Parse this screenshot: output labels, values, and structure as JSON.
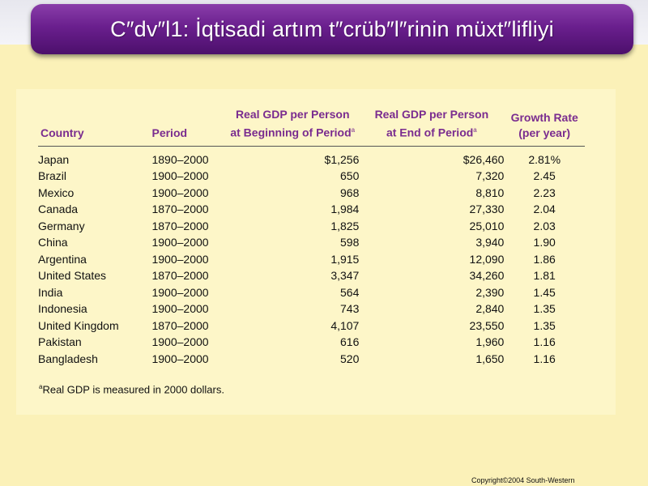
{
  "slide": {
    "title": "C″dv″l1: İqtisadi artım t″crüb″l″rinin müxt″lifliyi",
    "copyright": "Copyright©2004  South-Western"
  },
  "table": {
    "headers": {
      "country": "Country",
      "period": "Period",
      "begin_line1": "Real GDP per Person",
      "begin_line2": "at Beginning of Period",
      "end_line1": "Real GDP per Person",
      "end_line2": "at End of Period",
      "growth_line1": "Growth Rate",
      "growth_line2": "(per year)",
      "footnote_marker": "a"
    },
    "rows": [
      {
        "country": "Japan",
        "period": "1890–2000",
        "begin": "$1,256",
        "end": "$26,460",
        "growth": "2.81%"
      },
      {
        "country": "Brazil",
        "period": "1900–2000",
        "begin": "650",
        "end": "7,320",
        "growth": "2.45"
      },
      {
        "country": "Mexico",
        "period": "1900–2000",
        "begin": "968",
        "end": "8,810",
        "growth": "2.23"
      },
      {
        "country": "Canada",
        "period": "1870–2000",
        "begin": "1,984",
        "end": "27,330",
        "growth": "2.04"
      },
      {
        "country": "Germany",
        "period": "1870–2000",
        "begin": "1,825",
        "end": "25,010",
        "growth": "2.03"
      },
      {
        "country": "China",
        "period": "1900–2000",
        "begin": "598",
        "end": "3,940",
        "growth": "1.90"
      },
      {
        "country": "Argentina",
        "period": "1900–2000",
        "begin": "1,915",
        "end": "12,090",
        "growth": "1.86"
      },
      {
        "country": "United States",
        "period": "1870–2000",
        "begin": "3,347",
        "end": "34,260",
        "growth": "1.81"
      },
      {
        "country": "India",
        "period": "1900–2000",
        "begin": "564",
        "end": "2,390",
        "growth": "1.45"
      },
      {
        "country": "Indonesia",
        "period": "1900–2000",
        "begin": "743",
        "end": "2,840",
        "growth": "1.35"
      },
      {
        "country": "United Kingdom",
        "period": "1870–2000",
        "begin": "4,107",
        "end": "23,550",
        "growth": "1.35"
      },
      {
        "country": "Pakistan",
        "period": "1900–2000",
        "begin": "616",
        "end": "1,960",
        "growth": "1.16"
      },
      {
        "country": "Bangladesh",
        "period": "1900–2000",
        "begin": "520",
        "end": "1,650",
        "growth": "1.16"
      }
    ],
    "footnote_marker": "a",
    "footnote": "Real GDP is measured in 2000 dollars."
  }
}
